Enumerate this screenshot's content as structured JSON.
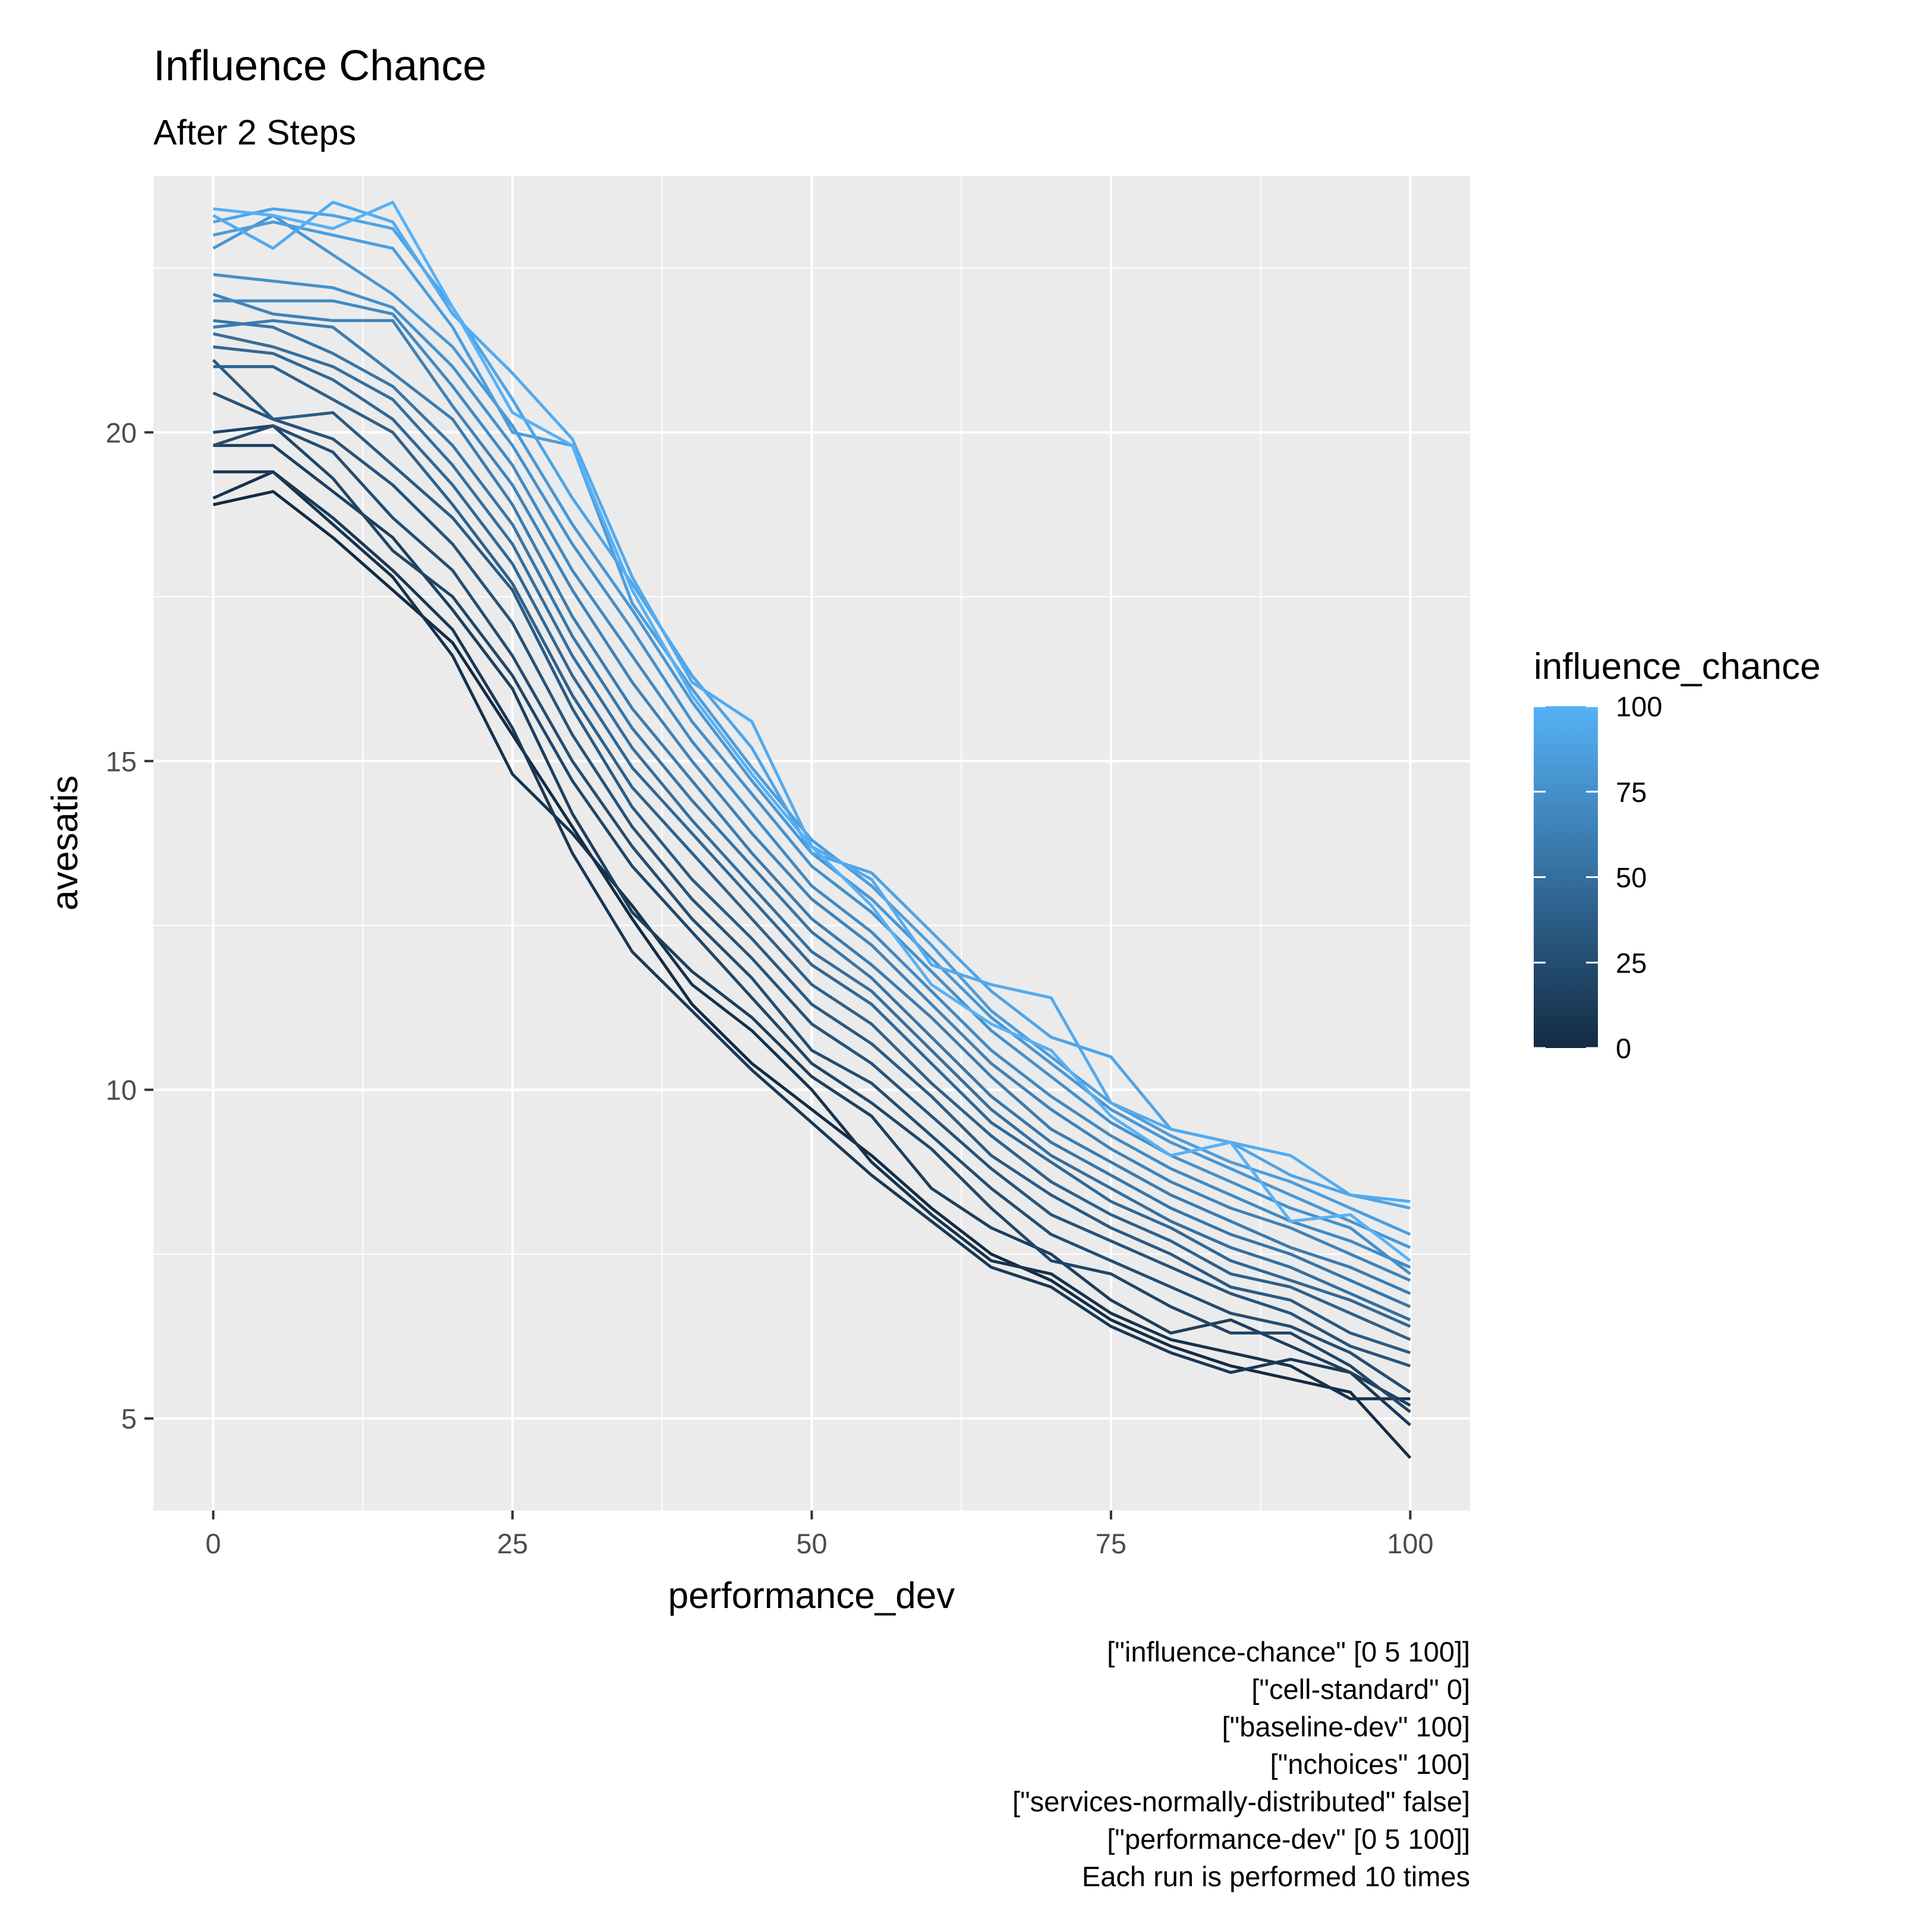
{
  "chart_data": {
    "type": "line",
    "title": "Influence Chance",
    "subtitle": "After 2 Steps",
    "xlabel": "performance_dev",
    "ylabel": "avesatis",
    "xlim": [
      -5,
      105
    ],
    "ylim": [
      3.6,
      23.9
    ],
    "x_ticks": [
      0,
      25,
      50,
      75,
      100
    ],
    "y_ticks": [
      5,
      10,
      15,
      20
    ],
    "x_tick_labels": [
      "0",
      "25",
      "50",
      "75",
      "100"
    ],
    "y_tick_labels": [
      "5",
      "10",
      "15",
      "20"
    ],
    "grid": true,
    "legend": {
      "title": "influence_chance",
      "placement": "right",
      "type": "colorbar",
      "range": [
        0,
        100
      ],
      "ticks": [
        0,
        25,
        50,
        75,
        100
      ],
      "tick_labels": [
        "0",
        "25",
        "50",
        "75",
        "100"
      ],
      "low_color": "#132B43",
      "high_color": "#56B1F7"
    },
    "x": [
      0,
      5,
      10,
      15,
      20,
      25,
      30,
      35,
      40,
      45,
      50,
      55,
      60,
      65,
      70,
      75,
      80,
      85,
      90,
      95,
      100
    ],
    "series": [
      {
        "influence_chance": 0,
        "values": [
          18.9,
          19.1,
          18.4,
          17.6,
          16.8,
          15.4,
          14.0,
          12.6,
          11.3,
          10.4,
          9.7,
          9.0,
          8.2,
          7.5,
          7.1,
          6.5,
          6.1,
          5.8,
          5.6,
          5.4,
          4.4
        ]
      },
      {
        "influence_chance": 5,
        "values": [
          19.0,
          19.4,
          18.6,
          17.8,
          16.6,
          14.8,
          13.9,
          12.8,
          11.6,
          10.9,
          10.0,
          8.9,
          8.1,
          7.4,
          7.2,
          6.6,
          6.2,
          6.0,
          5.8,
          5.3,
          5.3
        ]
      },
      {
        "influence_chance": 10,
        "values": [
          19.4,
          19.4,
          18.7,
          17.9,
          17.0,
          15.5,
          13.6,
          12.1,
          11.2,
          10.3,
          9.5,
          8.7,
          8.0,
          7.3,
          7.0,
          6.4,
          6.0,
          5.7,
          5.9,
          5.7,
          4.9
        ]
      },
      {
        "influence_chance": 15,
        "values": [
          19.8,
          19.8,
          19.1,
          18.4,
          17.3,
          16.1,
          14.2,
          12.7,
          11.8,
          11.1,
          10.2,
          9.6,
          8.5,
          7.9,
          7.5,
          6.8,
          6.3,
          6.5,
          6.1,
          5.7,
          5.2
        ]
      },
      {
        "influence_chance": 20,
        "values": [
          20.0,
          20.1,
          19.3,
          18.2,
          17.5,
          16.3,
          14.7,
          13.4,
          12.4,
          11.4,
          10.4,
          9.8,
          9.1,
          8.2,
          7.4,
          7.2,
          6.7,
          6.3,
          6.3,
          5.8,
          5.1
        ]
      },
      {
        "influence_chance": 25,
        "values": [
          19.8,
          20.1,
          19.7,
          18.7,
          17.9,
          16.6,
          15.0,
          13.7,
          12.6,
          11.7,
          10.6,
          10.1,
          9.3,
          8.5,
          7.8,
          7.4,
          7.0,
          6.6,
          6.4,
          6.0,
          5.4
        ]
      },
      {
        "influence_chance": 30,
        "values": [
          20.6,
          20.2,
          19.9,
          19.2,
          18.3,
          17.1,
          15.4,
          14.0,
          12.9,
          12.0,
          11.0,
          10.4,
          9.6,
          8.8,
          8.1,
          7.7,
          7.3,
          6.9,
          6.6,
          6.1,
          5.8
        ]
      },
      {
        "influence_chance": 35,
        "values": [
          21.1,
          20.2,
          20.3,
          19.5,
          18.7,
          17.6,
          15.8,
          14.3,
          13.2,
          12.3,
          11.3,
          10.7,
          9.9,
          9.0,
          8.4,
          7.9,
          7.5,
          7.0,
          6.8,
          6.3,
          6.0
        ]
      },
      {
        "influence_chance": 40,
        "values": [
          21.0,
          21.0,
          20.5,
          20.0,
          18.9,
          17.7,
          16.0,
          14.6,
          13.6,
          12.6,
          11.6,
          11.0,
          10.1,
          9.3,
          8.6,
          8.1,
          7.7,
          7.2,
          7.0,
          6.6,
          6.2
        ]
      },
      {
        "influence_chance": 45,
        "values": [
          21.3,
          21.2,
          20.8,
          20.2,
          19.2,
          18.0,
          16.3,
          14.9,
          13.9,
          12.9,
          11.9,
          11.3,
          10.4,
          9.5,
          8.9,
          8.3,
          7.9,
          7.4,
          7.1,
          6.8,
          6.4
        ]
      },
      {
        "influence_chance": 50,
        "values": [
          21.5,
          21.3,
          21.0,
          20.5,
          19.5,
          18.3,
          16.6,
          15.2,
          14.1,
          13.1,
          12.1,
          11.5,
          10.6,
          9.7,
          9.0,
          8.5,
          8.0,
          7.6,
          7.3,
          6.9,
          6.5
        ]
      },
      {
        "influence_chance": 55,
        "values": [
          21.7,
          21.6,
          21.2,
          20.7,
          19.8,
          18.6,
          16.9,
          15.5,
          14.4,
          13.4,
          12.4,
          11.7,
          10.8,
          9.9,
          9.2,
          8.7,
          8.2,
          7.8,
          7.5,
          7.1,
          6.7
        ]
      },
      {
        "influence_chance": 60,
        "values": [
          21.6,
          21.7,
          21.6,
          20.9,
          20.2,
          18.9,
          17.2,
          15.8,
          14.7,
          13.6,
          12.6,
          11.9,
          11.1,
          10.2,
          9.4,
          8.9,
          8.4,
          8.0,
          7.6,
          7.3,
          6.9
        ]
      },
      {
        "influence_chance": 65,
        "values": [
          22.1,
          21.8,
          21.7,
          21.7,
          20.4,
          19.2,
          17.6,
          16.2,
          15.0,
          13.9,
          12.9,
          12.2,
          11.3,
          10.4,
          9.7,
          9.1,
          8.6,
          8.2,
          7.9,
          7.5,
          7.1
        ]
      },
      {
        "influence_chance": 70,
        "values": [
          22.0,
          22.0,
          22.0,
          21.8,
          20.7,
          19.5,
          17.9,
          16.6,
          15.3,
          14.2,
          13.1,
          12.4,
          11.5,
          10.6,
          9.9,
          9.3,
          8.8,
          8.4,
          8.0,
          7.7,
          7.3
        ]
      },
      {
        "influence_chance": 75,
        "values": [
          22.4,
          22.3,
          22.2,
          21.9,
          21.0,
          19.8,
          18.3,
          17.0,
          15.6,
          14.5,
          13.4,
          12.7,
          11.8,
          10.9,
          10.2,
          9.5,
          9.0,
          8.6,
          8.2,
          7.9,
          7.2
        ]
      },
      {
        "influence_chance": 80,
        "values": [
          22.8,
          23.3,
          22.7,
          22.1,
          21.3,
          20.1,
          18.6,
          17.3,
          15.9,
          14.7,
          13.6,
          12.9,
          12.0,
          11.1,
          10.4,
          9.7,
          9.2,
          8.8,
          8.4,
          8.0,
          7.6
        ]
      },
      {
        "influence_chance": 85,
        "values": [
          23.0,
          23.2,
          23.0,
          22.8,
          21.6,
          20.0,
          19.8,
          17.4,
          16.1,
          14.9,
          13.8,
          13.1,
          12.2,
          11.2,
          10.5,
          9.8,
          9.3,
          8.9,
          8.6,
          8.2,
          7.8
        ]
      },
      {
        "influence_chance": 90,
        "values": [
          23.2,
          23.4,
          23.3,
          23.1,
          21.9,
          20.5,
          19.0,
          17.7,
          16.3,
          15.2,
          13.6,
          13.3,
          12.4,
          11.5,
          10.8,
          10.5,
          9.4,
          9.2,
          8.7,
          8.4,
          8.2
        ]
      },
      {
        "influence_chance": 95,
        "values": [
          23.3,
          22.8,
          23.5,
          23.2,
          21.8,
          20.9,
          19.9,
          17.8,
          16.2,
          15.6,
          13.7,
          13.2,
          11.9,
          11.6,
          11.4,
          9.8,
          9.4,
          9.2,
          9.0,
          8.4,
          8.3
        ]
      },
      {
        "influence_chance": 100,
        "values": [
          23.4,
          23.3,
          23.1,
          23.5,
          21.9,
          20.3,
          19.8,
          17.6,
          16.0,
          14.8,
          13.7,
          12.8,
          11.6,
          11.0,
          10.6,
          9.6,
          9.0,
          9.2,
          8.0,
          8.1,
          7.4
        ]
      }
    ],
    "caption_lines": [
      "[\"influence-chance\" [0 5 100]]",
      "[\"cell-standard\" 0]",
      "[\"baseline-dev\" 100]",
      "[\"nchoices\" 100]",
      "[\"services-normally-distributed\" false]",
      "[\"performance-dev\" [0 5 100]]",
      "Each run is performed 10 times"
    ]
  }
}
